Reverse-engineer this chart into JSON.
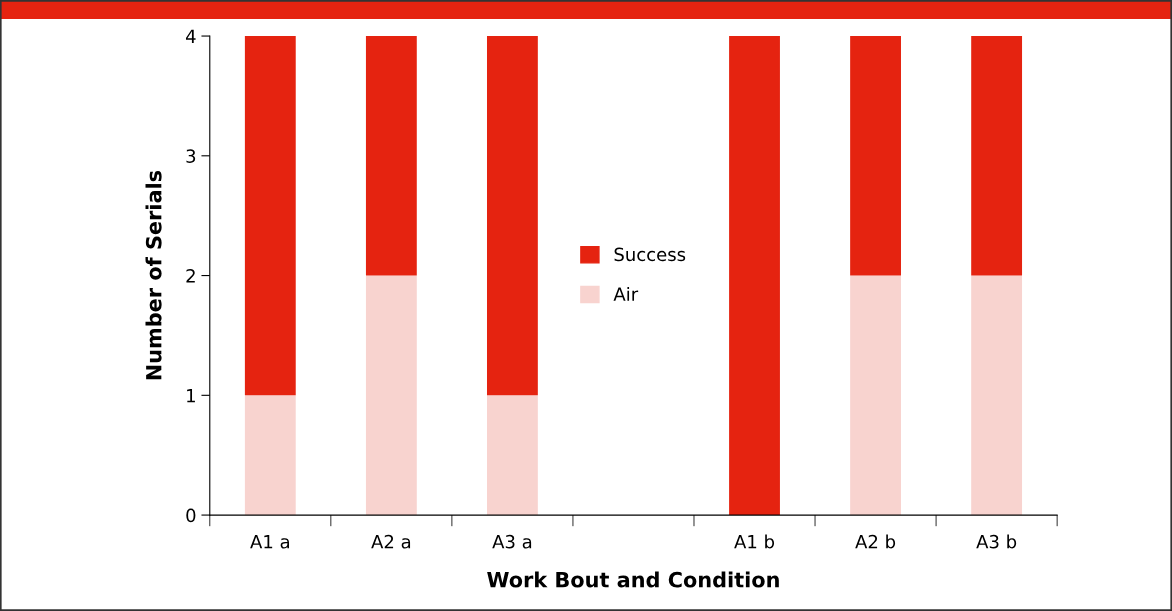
{
  "chart_data": {
    "type": "bar",
    "stacked": true,
    "xlabel": "Work Bout and Condition",
    "ylabel": "Number of Serials",
    "categories": [
      "A1 a",
      "A2 a",
      "A3 a",
      null,
      "A1 b",
      "A2 b",
      "A3 b"
    ],
    "series": [
      {
        "name": "Air",
        "color": "#f8d3cf",
        "values": [
          1,
          2,
          1,
          null,
          0,
          2,
          2
        ]
      },
      {
        "name": "Success",
        "color": "#e52310",
        "values": [
          3,
          2,
          3,
          null,
          4,
          2,
          2
        ]
      }
    ],
    "ylim": [
      0,
      4
    ],
    "yticks": [
      0,
      1,
      2,
      3,
      4
    ],
    "grid": false,
    "legend": "center"
  }
}
